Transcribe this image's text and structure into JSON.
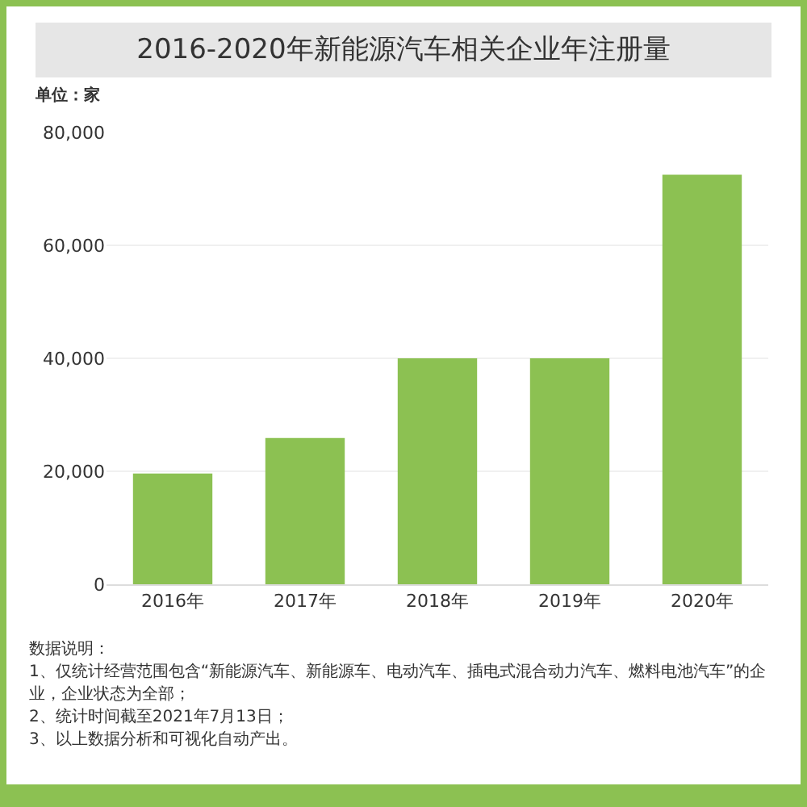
{
  "chart_data": {
    "type": "bar",
    "title": "2016-2020年新能源汽车相关企业年注册量",
    "ylabel": "单位：家",
    "categories": [
      "2016年",
      "2017年",
      "2018年",
      "2019年",
      "2020年"
    ],
    "values": [
      19600,
      25900,
      40000,
      40000,
      72500
    ],
    "color": "#8cc152",
    "ylim": [
      0,
      80000
    ],
    "yticks": [
      {
        "value": 0,
        "label": "0"
      },
      {
        "value": 20000,
        "label": "20,000"
      },
      {
        "value": 40000,
        "label": "40,000"
      },
      {
        "value": 60000,
        "label": "60,000"
      },
      {
        "value": 80000,
        "label": "80,000"
      }
    ],
    "grid": "y",
    "annotations": [
      "数据说明：",
      "1、仅统计经营范围包含“新能源汽车、新能源车、电动汽车、插电式混合动力汽车、燃料电池汽车”的企业，企业状态为全部；",
      "2、统计时间截至2021年7月13日；",
      "3、以上数据分析和可视化自动产出。"
    ]
  }
}
